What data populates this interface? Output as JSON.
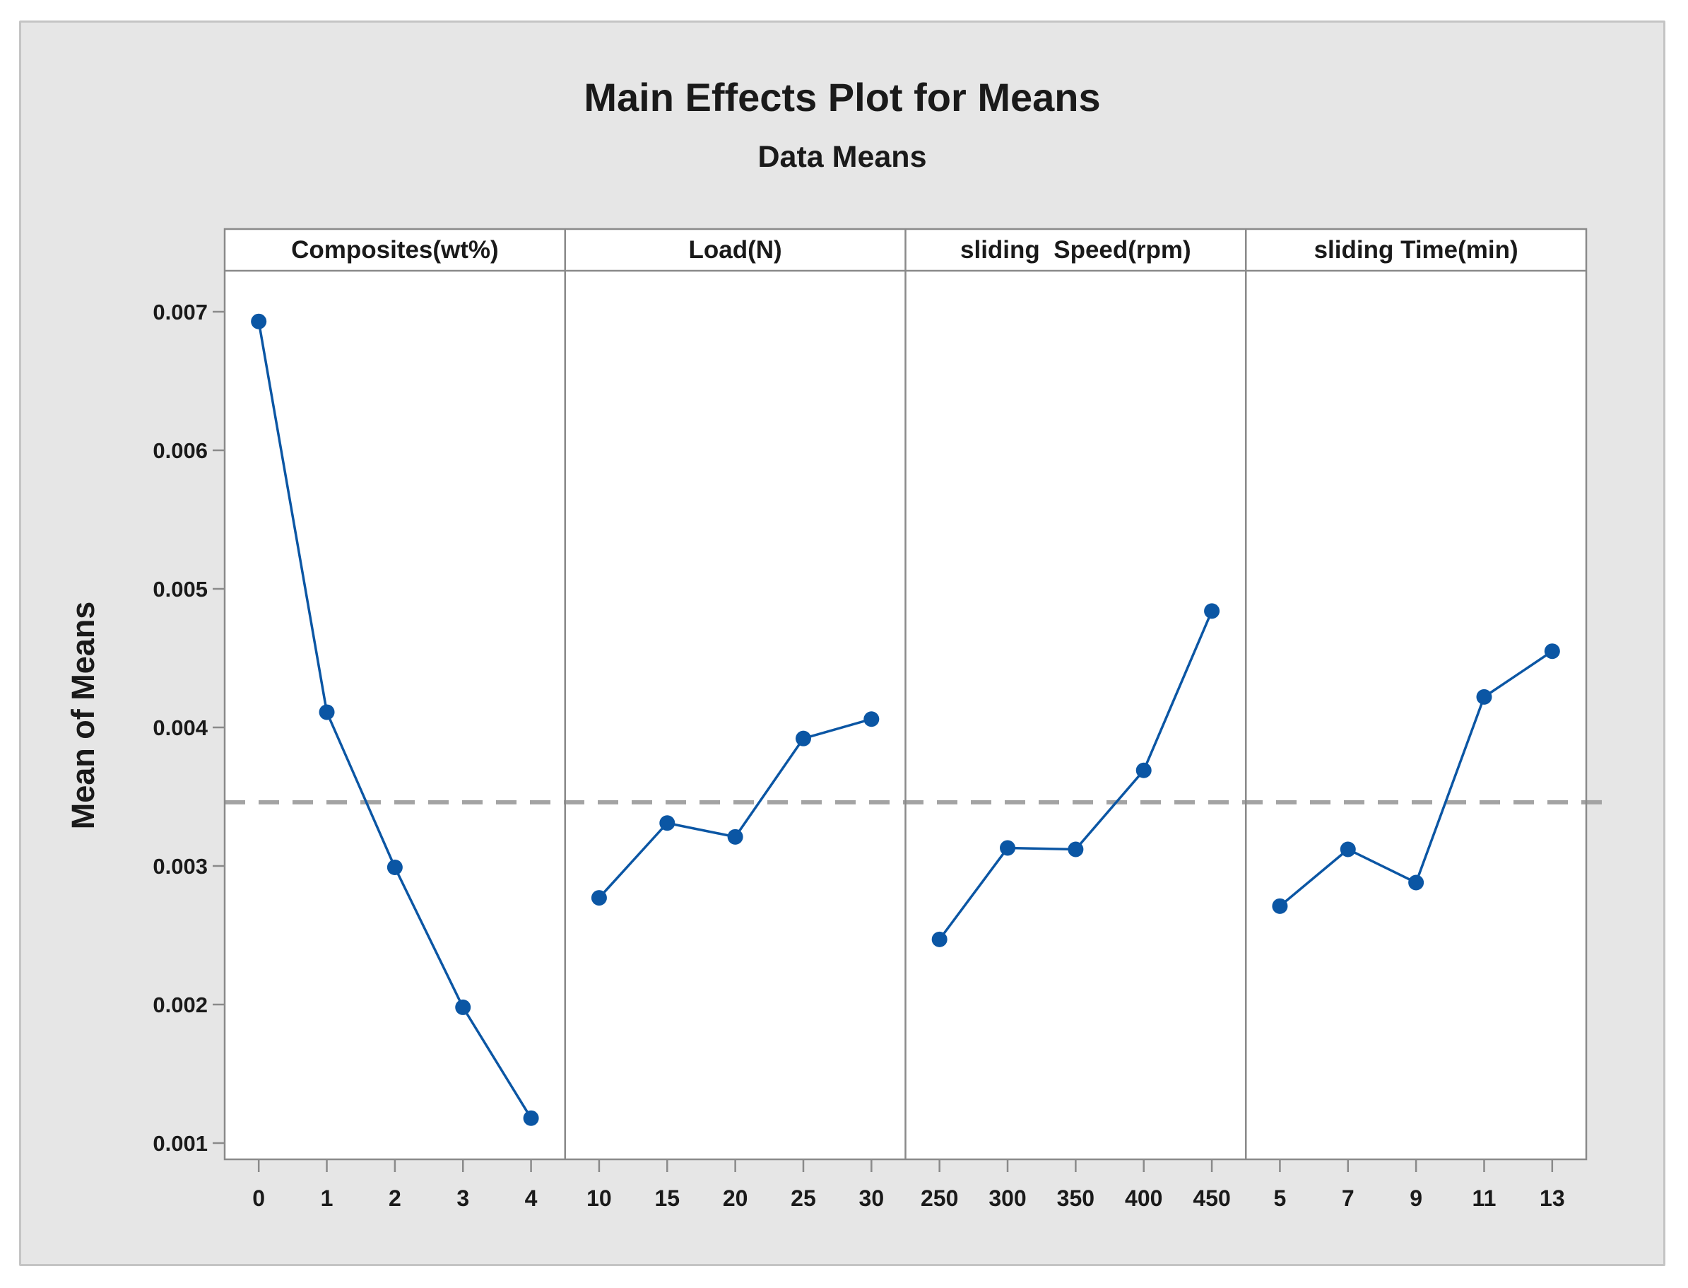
{
  "chart_data": {
    "type": "line",
    "title": "Main Effects Plot for Means",
    "subtitle": "Data Means",
    "ylabel": "Mean of Means",
    "xlabel": "",
    "y_ticks": [
      0.007,
      0.006,
      0.005,
      0.004,
      0.003,
      0.002,
      0.001
    ],
    "y_tick_labels": [
      "0.007",
      "0.006",
      "0.005",
      "0.004",
      "0.003",
      "0.002",
      "0.001"
    ],
    "ylim": [
      0.0009,
      0.0073
    ],
    "grid": "off",
    "legend": "none",
    "reference_line_mean": 0.00346,
    "panels": [
      {
        "label": "Composites(wt%)",
        "categories": [
          "0",
          "1",
          "2",
          "3",
          "4"
        ],
        "values": [
          0.00693,
          0.00411,
          0.00299,
          0.00198,
          0.00118
        ]
      },
      {
        "label": "Load(N)",
        "categories": [
          "10",
          "15",
          "20",
          "25",
          "30"
        ],
        "values": [
          0.00277,
          0.00331,
          0.00321,
          0.00392,
          0.00406
        ]
      },
      {
        "label": "sliding  Speed(rpm)",
        "categories": [
          "250",
          "300",
          "350",
          "400",
          "450"
        ],
        "values": [
          0.00247,
          0.00313,
          0.00312,
          0.00369,
          0.00484
        ]
      },
      {
        "label": "sliding Time(min)",
        "categories": [
          "5",
          "7",
          "9",
          "11",
          "13"
        ],
        "values": [
          0.00271,
          0.00312,
          0.00288,
          0.00422,
          0.00455
        ]
      }
    ],
    "colors": {
      "marker": "#0b56a4",
      "line": "#0b56a4",
      "reference": "#a3a3a3",
      "frame": "#8a8a8a",
      "window_bg": "#e6e6e6",
      "window_border": "#c4c4c4",
      "plot_bg": "#ffffff",
      "text": "#1a1a1a"
    }
  }
}
